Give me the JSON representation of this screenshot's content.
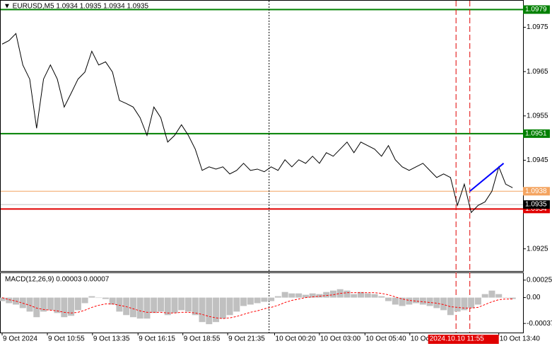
{
  "chart_data": [
    {
      "type": "line",
      "title": "▼ EURUSD,M5  1.0934 1.0935 1.0934 1.0935",
      "series": [
        {
          "name": "EURUSD",
          "color": "#000000",
          "values": [
            1.09712,
            1.0972,
            1.09736,
            1.09665,
            1.09633,
            1.09522,
            1.09633,
            1.09665,
            1.09633,
            1.0957,
            1.09601,
            1.09633,
            1.09649,
            1.09696,
            1.09665,
            1.09672,
            1.09649,
            1.09585,
            1.09578,
            1.0957,
            1.09546,
            1.09506,
            1.0957,
            1.09546,
            1.09491,
            1.09506,
            1.0953,
            1.09506,
            1.09475,
            1.09427,
            1.09435,
            1.0943,
            1.09435,
            1.09419,
            1.09427,
            1.09443,
            1.09427,
            1.0943,
            1.09424,
            1.09435,
            1.09427,
            1.09451,
            1.09435,
            1.09451,
            1.09443,
            1.09459,
            1.09443,
            1.09467,
            1.09459,
            1.09475,
            1.09491,
            1.09467,
            1.09491,
            1.09483,
            1.09475,
            1.09459,
            1.09483,
            1.09451,
            1.09435,
            1.09427,
            1.09435,
            1.09443,
            1.09427,
            1.09411,
            1.09419,
            1.09411,
            1.09348,
            1.09396,
            1.09332,
            1.09348,
            1.09356,
            1.0938,
            1.09435,
            1.09396,
            1.09388
          ]
        }
      ],
      "ylim": [
        1.092,
        1.0981
      ],
      "yticks": [
        1.0925,
        1.0945,
        1.0955,
        1.0965,
        1.0975
      ],
      "xlim": [
        0,
        76
      ],
      "xticks": [
        {
          "value": 0,
          "label": "9 Oct 2024"
        },
        {
          "value": 6.56,
          "label": "9 Oct 10:55"
        },
        {
          "value": 13.1,
          "label": "9 Oct 13:35"
        },
        {
          "value": 19.7,
          "label": "9 Oct 16:15"
        },
        {
          "value": 26.2,
          "label": "9 Oct 18:55"
        },
        {
          "value": 32.7,
          "label": "9 Oct 21:35"
        },
        {
          "value": 39.5,
          "label": "10 Oct 00:20"
        },
        {
          "value": 46,
          "label": "10 Oct 03:00"
        },
        {
          "value": 52.6,
          "label": "10 Oct 05:40"
        },
        {
          "value": 59.1,
          "label": "10 Oct 08:20"
        },
        {
          "value": 72,
          "label": "10 Oct 13:40"
        }
      ],
      "levels": [
        {
          "value": 1.0979,
          "color": "#008000"
        },
        {
          "value": 1.0951,
          "color": "#008000"
        },
        {
          "value": 1.0938,
          "color": "#f4a460"
        },
        {
          "value": 1.0934,
          "color": "#e00000"
        }
      ],
      "current_price": 1.0935,
      "vlines": [
        {
          "x": 38.7,
          "color": "#000000"
        },
        {
          "x": 65.8,
          "color": "#e00000"
        },
        {
          "x": 67.8,
          "color": "#e00000"
        }
      ],
      "cursor": {
        "x": 67.8,
        "label": "2024.10.10 11:55"
      },
      "trendline": {
        "x": [
          67.8,
          72.7
        ],
        "y": [
          1.0938,
          1.09443
        ],
        "color": "#0000ff"
      }
    },
    {
      "type": "macd",
      "title": "MACD(12,26,9) 0.00003 0.00007",
      "series": [
        {
          "name": "MACD",
          "color": "#c0c0c0",
          "values": [
            -5e-05,
            -8e-05,
            -0.0001,
            -0.00015,
            -0.0002,
            -0.00028,
            -0.0002,
            -0.00018,
            -0.00022,
            -0.00028,
            -0.00026,
            -0.00018,
            -8e-05,
            2e-05,
            0,
            -2e-05,
            -0.0001,
            -0.0002,
            -0.00025,
            -0.00028,
            -0.0003,
            -0.0003,
            -0.00022,
            -0.0002,
            -0.00025,
            -0.00022,
            -0.00018,
            -0.0002,
            -0.00025,
            -0.00035,
            -0.00038,
            -0.00035,
            -0.0003,
            -0.00025,
            -0.0002,
            -0.00012,
            -0.0001,
            -8e-05,
            -6e-05,
            -5e-05,
            2e-05,
            8e-05,
            6e-05,
            6e-05,
            4e-05,
            6e-05,
            5e-05,
            8e-05,
            0.0001,
            0.00012,
            0.0001,
            5e-05,
            8e-05,
            6e-05,
            5e-05,
            2e-05,
            -5e-05,
            -0.0001,
            -0.00012,
            -0.0001,
            -8e-05,
            -0.0001,
            -0.00012,
            -0.00015,
            -0.00018,
            -0.00025,
            -0.0002,
            -0.00018,
            -0.00015,
            -0.0001,
            5e-05,
            0.0001,
            5e-05,
            0,
            -2e-05
          ]
        },
        {
          "name": "Signal",
          "color": "#ff0000",
          "values": [
            0,
            -3e-05,
            -5e-05,
            -8e-05,
            -0.00011,
            -0.00015,
            -0.00017,
            -0.00018,
            -0.00019,
            -0.00021,
            -0.00022,
            -0.00021,
            -0.00018,
            -0.00014,
            -0.00011,
            -9e-05,
            -9e-05,
            -0.00011,
            -0.00013,
            -0.00016,
            -0.00019,
            -0.00021,
            -0.00021,
            -0.00021,
            -0.00022,
            -0.00022,
            -0.00021,
            -0.00021,
            -0.00022,
            -0.00024,
            -0.00027,
            -0.00029,
            -0.0003,
            -0.00029,
            -0.00027,
            -0.00024,
            -0.00021,
            -0.00019,
            -0.00016,
            -0.00014,
            -0.00011,
            -7e-05,
            -4e-05,
            -2e-05,
            0,
            1e-05,
            2e-05,
            3e-05,
            4e-05,
            6e-05,
            7e-05,
            7e-05,
            7e-05,
            7e-05,
            7e-05,
            6e-05,
            4e-05,
            1e-05,
            -2e-05,
            -4e-05,
            -5e-05,
            -6e-05,
            -7e-05,
            -8e-05,
            -0.0001,
            -0.00013,
            -0.00014,
            -0.00015,
            -0.00015,
            -0.00014,
            -0.0001,
            -6e-05,
            -3e-05,
            -2e-05,
            -2e-05
          ]
        }
      ],
      "ylim": [
        -0.0005,
        0.00035
      ],
      "yticks": [
        -0.00037,
        {
          "value": 0,
          "label": "0.00"
        },
        0.00025
      ]
    }
  ]
}
